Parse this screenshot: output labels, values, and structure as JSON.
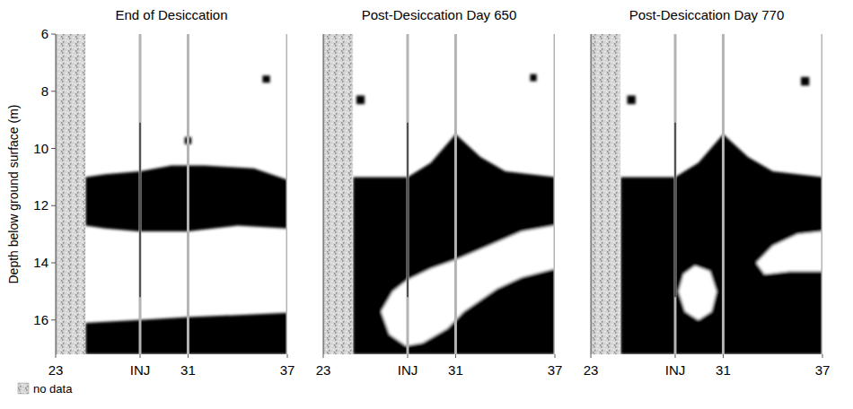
{
  "chart_data": [
    {
      "type": "section",
      "title": "End of Desiccation",
      "ylabel": "Depth below ground surface (m)",
      "xlim": [
        23,
        37
      ],
      "ylim": [
        17.2,
        6
      ],
      "xticks": [
        23,
        {
          "value": 28.1,
          "label": "INJ"
        },
        31,
        37
      ],
      "yticks": [
        6,
        8,
        10,
        12,
        14,
        16
      ],
      "no_data_x": [
        23,
        24.8
      ],
      "no_data_label": "no data",
      "injection_line": {
        "x": 28.1,
        "y": [
          9.1,
          15.2
        ]
      },
      "zones": [
        {
          "color": "#000000",
          "points": [
            [
              24.8,
              11.0
            ],
            [
              26,
              10.9
            ],
            [
              28.1,
              10.8
            ],
            [
              30,
              10.6
            ],
            [
              32,
              10.6
            ],
            [
              35,
              10.7
            ],
            [
              37,
              11.1
            ],
            [
              37,
              12.8
            ],
            [
              34,
              12.7
            ],
            [
              31,
              12.9
            ],
            [
              28,
              12.9
            ],
            [
              26,
              12.8
            ],
            [
              24.8,
              12.7
            ]
          ]
        },
        {
          "color": "#000000",
          "points": [
            [
              24.8,
              16.1
            ],
            [
              28,
              16.0
            ],
            [
              31,
              15.9
            ],
            [
              37,
              15.75
            ],
            [
              37,
              17.2
            ],
            [
              24.8,
              17.2
            ]
          ]
        },
        {
          "color": "#000000",
          "points": [
            [
              30.8,
              9.6
            ],
            [
              31.2,
              9.6
            ],
            [
              31.2,
              9.85
            ],
            [
              30.8,
              9.85
            ]
          ]
        },
        {
          "color": "#000000",
          "points": [
            [
              35.5,
              7.45
            ],
            [
              35.95,
              7.45
            ],
            [
              35.95,
              7.7
            ],
            [
              35.5,
              7.7
            ]
          ]
        }
      ]
    },
    {
      "type": "section",
      "title": "Post-Desiccation Day 650",
      "xlim": [
        23,
        37
      ],
      "ylim": [
        17.2,
        6
      ],
      "xticks": [
        23,
        {
          "value": 28.1,
          "label": "INJ"
        },
        31,
        37
      ],
      "yticks": [
        6,
        8,
        10,
        12,
        14,
        16
      ],
      "tick_labels": "x",
      "no_data_x": [
        23,
        24.8
      ],
      "injection_line": {
        "x": 28.1,
        "y": [
          9.1,
          15.2
        ]
      },
      "zones": [
        {
          "color": "#000000",
          "points": [
            [
              24.8,
              11.0
            ],
            [
              26,
              11.0
            ],
            [
              28.1,
              11.0
            ],
            [
              29.5,
              10.5
            ],
            [
              31,
              9.5
            ],
            [
              32.5,
              10.3
            ],
            [
              34,
              10.8
            ],
            [
              37,
              11.0
            ],
            [
              37,
              17.2
            ],
            [
              24.8,
              17.2
            ]
          ]
        },
        {
          "color": "#ffffff",
          "points": [
            [
              26.5,
              15.7
            ],
            [
              27.2,
              15.0
            ],
            [
              28.1,
              14.6
            ],
            [
              29.5,
              14.2
            ],
            [
              31,
              13.9
            ],
            [
              33,
              13.4
            ],
            [
              35,
              12.9
            ],
            [
              37,
              12.7
            ],
            [
              37,
              14.2
            ],
            [
              35,
              14.5
            ],
            [
              33.5,
              14.9
            ],
            [
              31.5,
              15.7
            ],
            [
              30.5,
              16.3
            ],
            [
              29,
              16.8
            ],
            [
              28,
              16.9
            ],
            [
              27,
              16.5
            ]
          ]
        },
        {
          "color": "#000000",
          "points": [
            [
              25.0,
              8.15
            ],
            [
              25.5,
              8.15
            ],
            [
              25.5,
              8.45
            ],
            [
              25.0,
              8.45
            ]
          ]
        },
        {
          "color": "#000000",
          "points": [
            [
              35.5,
              7.4
            ],
            [
              35.9,
              7.4
            ],
            [
              35.9,
              7.65
            ],
            [
              35.5,
              7.65
            ]
          ]
        }
      ]
    },
    {
      "type": "section",
      "title": "Post-Desiccation Day 770",
      "xlim": [
        23,
        37
      ],
      "ylim": [
        17.2,
        6
      ],
      "xticks": [
        23,
        {
          "value": 28.1,
          "label": "INJ"
        },
        31,
        37
      ],
      "yticks": [
        6,
        8,
        10,
        12,
        14,
        16
      ],
      "tick_labels": "x",
      "no_data_x": [
        23,
        24.8
      ],
      "injection_line": {
        "x": 28.1,
        "y": [
          9.1,
          15.2
        ]
      },
      "zones": [
        {
          "color": "#000000",
          "points": [
            [
              24.8,
              11.0
            ],
            [
              26,
              11.0
            ],
            [
              28.1,
              11.0
            ],
            [
              29.5,
              10.5
            ],
            [
              31,
              9.5
            ],
            [
              32.5,
              10.3
            ],
            [
              34,
              10.8
            ],
            [
              37,
              11.0
            ],
            [
              37,
              17.2
            ],
            [
              24.8,
              17.2
            ]
          ]
        },
        {
          "color": "#ffffff",
          "points": [
            [
              28.3,
              15.0
            ],
            [
              28.6,
              14.4
            ],
            [
              29.3,
              14.1
            ],
            [
              30.2,
              14.3
            ],
            [
              30.6,
              15.0
            ],
            [
              30.3,
              15.7
            ],
            [
              29.5,
              16.0
            ],
            [
              28.7,
              15.7
            ]
          ]
        },
        {
          "color": "#ffffff",
          "points": [
            [
              33,
              14.0
            ],
            [
              34,
              13.4
            ],
            [
              35.5,
              13.0
            ],
            [
              37,
              12.9
            ],
            [
              37,
              14.3
            ],
            [
              35,
              14.3
            ],
            [
              33.5,
              14.4
            ]
          ]
        },
        {
          "color": "#000000",
          "points": [
            [
              25.2,
              8.15
            ],
            [
              25.7,
              8.15
            ],
            [
              25.7,
              8.45
            ],
            [
              25.2,
              8.45
            ]
          ]
        },
        {
          "color": "#000000",
          "points": [
            [
              35.7,
              7.5
            ],
            [
              36.2,
              7.5
            ],
            [
              36.2,
              7.8
            ],
            [
              35.7,
              7.8
            ]
          ]
        }
      ]
    }
  ]
}
